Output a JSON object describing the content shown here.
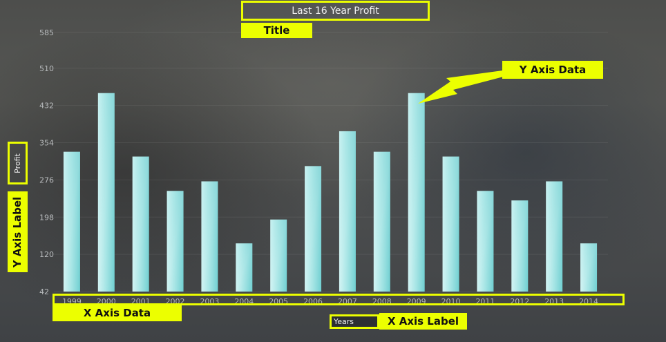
{
  "chart_data": {
    "type": "bar",
    "title": "Last 16 Year Profit",
    "xlabel": "Years",
    "ylabel": "Profit",
    "categories": [
      "1999",
      "2000",
      "2001",
      "2002",
      "2003",
      "2004",
      "2005",
      "2006",
      "2007",
      "2008",
      "2009",
      "2010",
      "2011",
      "2012",
      "2013",
      "2014"
    ],
    "values": [
      335,
      458,
      325,
      253,
      273,
      143,
      193,
      305,
      378,
      335,
      458,
      325,
      253,
      233,
      273,
      143
    ],
    "ylim": [
      42,
      585
    ],
    "yticks": [
      42,
      120,
      198,
      276,
      354,
      432,
      510,
      585
    ],
    "grid": true,
    "bar_color": "#8fdadb"
  },
  "annotations": {
    "title": "Title",
    "y_axis_data": "Y Axis Data",
    "y_axis_label": "Y Axis Label",
    "x_axis_data": "X Axis Data",
    "x_axis_label": "X Axis Label",
    "highlight_color": "#ecff00"
  }
}
